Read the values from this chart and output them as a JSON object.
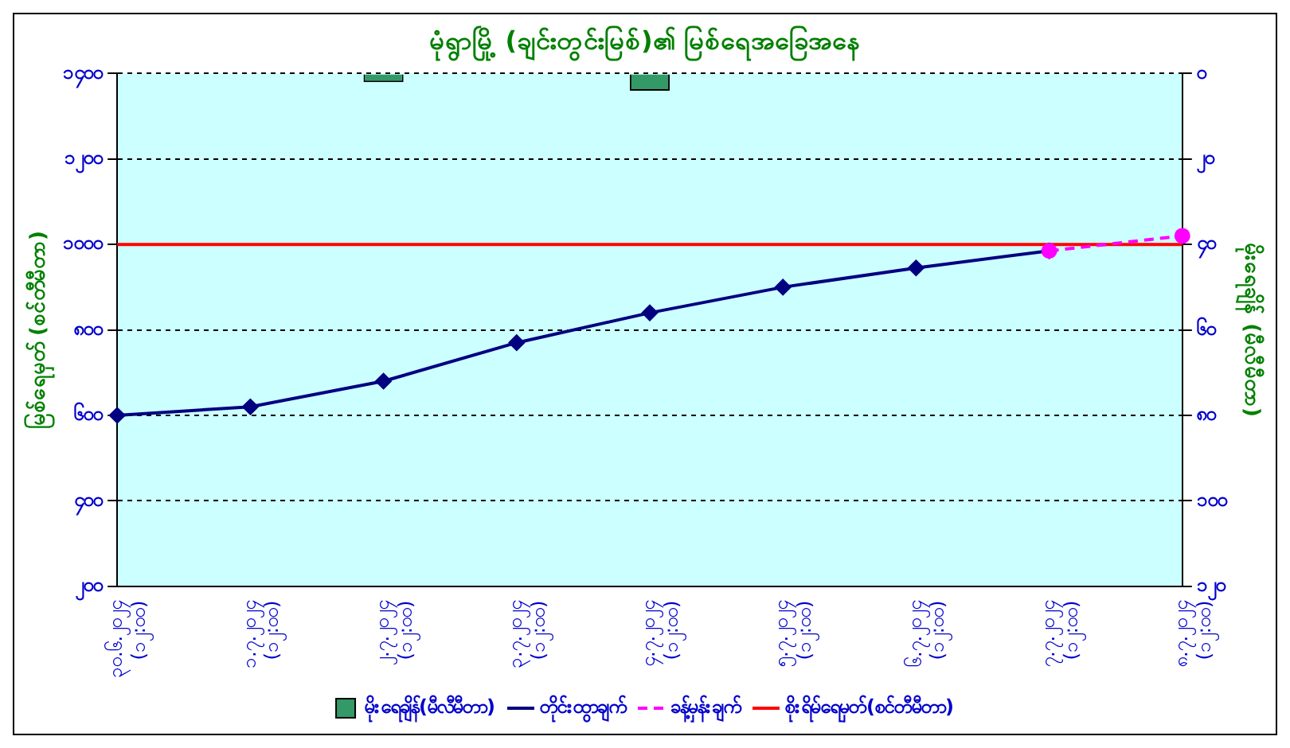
{
  "chart_data": {
    "type": "line",
    "title": "မုံရွာမြို့ (ချင်းတွင်းမြစ်)၏ မြစ်ရေအခြေအနေ",
    "ylabel": "မြစ်ရေမှတ် (စင်တီမီတာ)",
    "y2label": "မိုးရေချိန် (မီလီမီတာ)",
    "categories": [
      "၃၀.၆.၂၀၂၄ (၁၂:၀၀)",
      "၁.၇.၂၀၂၄ (၁၂:၀၀)",
      "၂.၇.၂၀၂၄ (၁၂:၀၀)",
      "၃.၇.၂၀၂၄ (၁၂:၀၀)",
      "၄.၇.၂၀၂၄ (၁၂:၀၀)",
      "၅.၇.၂၀၂၄ (၁၂:၀၀)",
      "၆.၇.၂၀၂၄ (၁၂:၀၀)",
      "၇.၇.၂၀၂၄ (၁၂:၀၀)",
      "၈.၇.၂၀၂၄ (၁၂:၀၀)"
    ],
    "series": [
      {
        "name": "မိုးရေချိန်(မီလီမီတာ)",
        "type": "bar",
        "axis": "y2",
        "color": "#339966",
        "values": [
          null,
          null,
          2,
          null,
          4,
          null,
          null,
          null,
          null
        ]
      },
      {
        "name": "တိုင်းထွာချက်",
        "color": "#000080",
        "marker": "diamond",
        "line_style": "solid",
        "values": [
          600,
          620,
          680,
          770,
          840,
          900,
          945,
          985,
          null
        ]
      },
      {
        "name": "ခန့်မှန်းချက်",
        "color": "#ff00ff",
        "marker": "circle",
        "line_style": "dashed",
        "values": [
          null,
          null,
          null,
          null,
          null,
          null,
          null,
          985,
          1020
        ]
      }
    ],
    "ref_lines": [
      {
        "axis": "y",
        "value": 1000,
        "label": "စိုးရိမ်ရေမှတ်(စင်တီမီတာ)",
        "color": "#ff0000"
      }
    ],
    "ylim": [
      200,
      1400
    ],
    "yticks": [
      {
        "value": 200,
        "label": "၂၀၀"
      },
      {
        "value": 400,
        "label": "၄၀၀"
      },
      {
        "value": 600,
        "label": "၆၀၀"
      },
      {
        "value": 800,
        "label": "၈၀၀"
      },
      {
        "value": 1000,
        "label": "၁၀၀၀"
      },
      {
        "value": 1200,
        "label": "၁၂၀၀"
      },
      {
        "value": 1400,
        "label": "၁၄၀၀"
      }
    ],
    "y2lim": [
      120,
      0
    ],
    "y2ticks": [
      {
        "value": 0,
        "label": "၀"
      },
      {
        "value": 20,
        "label": "၂၀"
      },
      {
        "value": 40,
        "label": "၄၀"
      },
      {
        "value": 60,
        "label": "၆၀"
      },
      {
        "value": 80,
        "label": "၈၀"
      },
      {
        "value": 100,
        "label": "၁၀၀"
      },
      {
        "value": 120,
        "label": "၁၂၀"
      }
    ],
    "grid": "y",
    "legend": "bottom"
  }
}
